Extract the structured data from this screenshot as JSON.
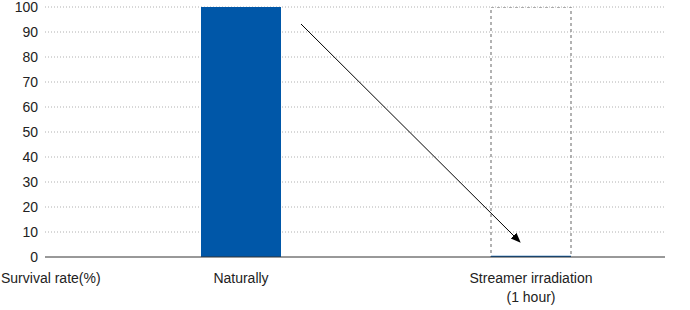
{
  "chart_data": {
    "type": "bar",
    "y_label": "Survival rate(%)",
    "categories": [
      "Naturally",
      "Streamer irradiation\n(1 hour)"
    ],
    "values": [
      100,
      0.5
    ],
    "color": "#0057a8",
    "ylim": [
      0,
      100
    ],
    "yticks": [
      0,
      10,
      20,
      30,
      40,
      50,
      60,
      70,
      80,
      90,
      100
    ],
    "grid": true
  }
}
